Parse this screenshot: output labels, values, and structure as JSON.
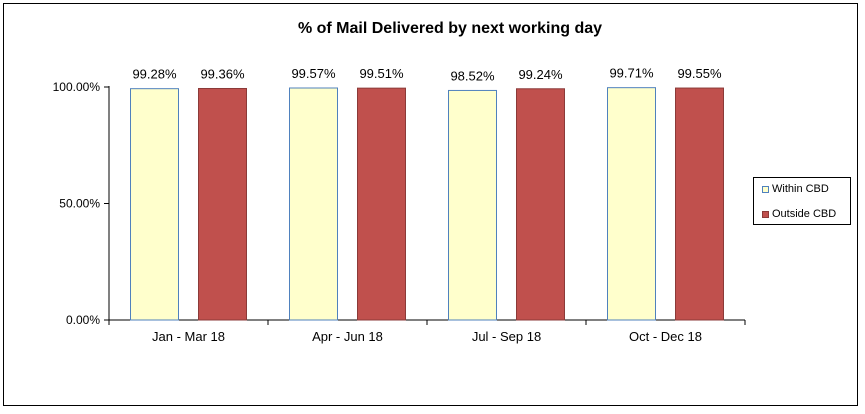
{
  "chart_data": {
    "type": "bar",
    "title": "% of Mail Delivered by next working day",
    "xlabel": "",
    "ylabel": "",
    "ylim": [
      0,
      100
    ],
    "y_ticks": [
      "0.00%",
      "50.00%",
      "100.00%"
    ],
    "y_tick_values": [
      0,
      50,
      100
    ],
    "categories": [
      "Jan - Mar 18",
      "Apr - Jun 18",
      "Jul - Sep 18",
      "Oct - Dec 18"
    ],
    "series": [
      {
        "name": "Within CBD",
        "values": [
          99.28,
          99.57,
          98.52,
          99.71
        ],
        "labels": [
          "99.28%",
          "99.57%",
          "98.52%",
          "99.71%"
        ],
        "color": "#FFFFCC",
        "stroke": "#4F81BD"
      },
      {
        "name": "Outside CBD",
        "values": [
          99.36,
          99.51,
          99.24,
          99.55
        ],
        "labels": [
          "99.36%",
          "99.51%",
          "99.24%",
          "99.55%"
        ],
        "color": "#C0504D",
        "stroke": "#8B3A38"
      }
    ],
    "grid": false,
    "legend_position": "right"
  }
}
